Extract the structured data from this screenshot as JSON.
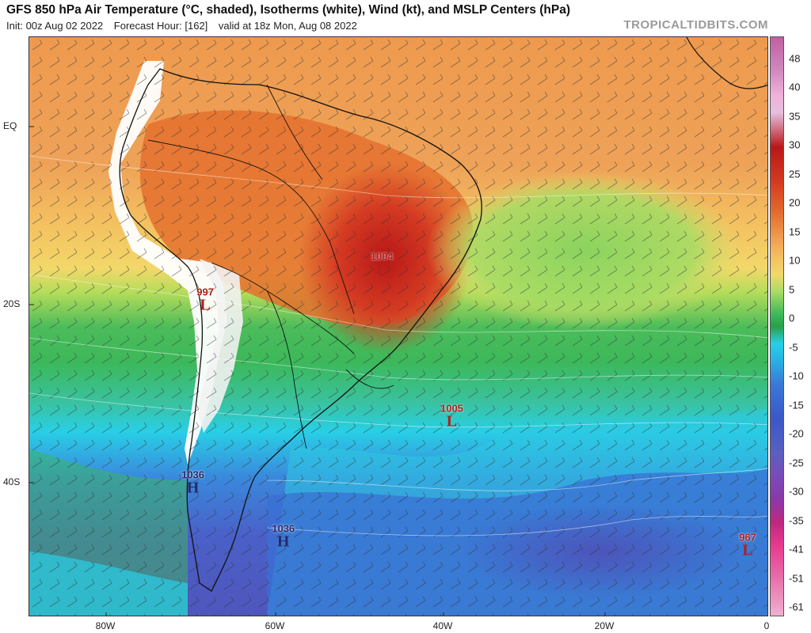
{
  "header": {
    "title": "GFS 850 hPa Air Temperature (°C, shaded), Isotherms (white), Wind (kt), and MSLP Centers (hPa)",
    "init": "Init: 00z Aug 02 2022",
    "forecast_hour": "Forecast Hour: [162]",
    "valid": "valid at 18z Mon, Aug 08 2022",
    "brand": "TROPICALTIDBITS.COM"
  },
  "axes": {
    "lat_labels": [
      "EQ",
      "20S",
      "40S"
    ],
    "lon_labels": [
      "80W",
      "60W",
      "40W",
      "20W",
      "0"
    ]
  },
  "colorbar": {
    "ticks": [
      "48",
      "40",
      "35",
      "30",
      "25",
      "20",
      "15",
      "10",
      "5",
      "0",
      "-5",
      "-10",
      "-15",
      "-20",
      "-25",
      "-30",
      "-35",
      "-41",
      "-51",
      "-61"
    ]
  },
  "pressure_centers": [
    {
      "type": "L",
      "value": "1004",
      "lon": -47,
      "lat": -15.5
    },
    {
      "type": "L",
      "value": "997",
      "lon": -68.5,
      "lat": -19.5
    },
    {
      "type": "L",
      "value": "1005",
      "lon": -38.5,
      "lat": -32.5
    },
    {
      "type": "H",
      "value": "1036",
      "lon": -70,
      "lat": -40
    },
    {
      "type": "H",
      "value": "1036",
      "lon": -59,
      "lat": -46
    },
    {
      "type": "L",
      "value": "967",
      "lon": -2.5,
      "lat": -47
    }
  ],
  "colors": {
    "hot": "#c8261c",
    "warm": "#e06a2c",
    "orange": "#f0a050",
    "yellow": "#f2d46a",
    "lightgreen": "#9ed860",
    "green": "#3cb85a",
    "cyan": "#27d4e8",
    "blue": "#3a78d8",
    "purple": "#5a4ab8",
    "terrain": "#ffffff"
  }
}
